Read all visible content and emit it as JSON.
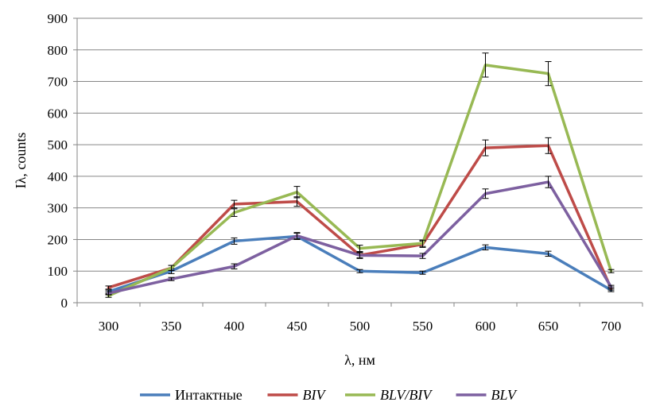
{
  "chart_data": {
    "type": "line",
    "title": "",
    "xlabel": "λ, нм",
    "ylabel": "Iλ, counts",
    "categories": [
      "300",
      "350",
      "400",
      "450",
      "500",
      "550",
      "600",
      "650",
      "700"
    ],
    "ylim": [
      0,
      900
    ],
    "yticks": [
      "0",
      "100",
      "200",
      "300",
      "400",
      "500",
      "600",
      "700",
      "800",
      "900"
    ],
    "grid": "horizontal",
    "legend_position": "bottom",
    "series": [
      {
        "name": "Интактные",
        "color": "#4a7ebb",
        "values": [
          35,
          100,
          195,
          210,
          100,
          95,
          175,
          155,
          40
        ],
        "errors": [
          5,
          8,
          10,
          10,
          5,
          5,
          8,
          8,
          5
        ],
        "italic": false
      },
      {
        "name": "BIV",
        "color": "#be4b48",
        "values": [
          48,
          110,
          312,
          320,
          150,
          185,
          490,
          497,
          45
        ],
        "errors": [
          5,
          8,
          12,
          15,
          10,
          10,
          25,
          25,
          5
        ],
        "italic": true
      },
      {
        "name": "BLV/BIV",
        "color": "#98b954",
        "values": [
          22,
          110,
          285,
          350,
          172,
          188,
          752,
          725,
          100
        ],
        "errors": [
          5,
          8,
          12,
          18,
          10,
          10,
          38,
          38,
          5
        ],
        "italic": true
      },
      {
        "name": "BLV",
        "color": "#7d60a0",
        "values": [
          30,
          75,
          115,
          212,
          150,
          148,
          345,
          382,
          50
        ],
        "errors": [
          5,
          5,
          8,
          10,
          8,
          8,
          15,
          18,
          5
        ],
        "italic": true
      }
    ]
  }
}
